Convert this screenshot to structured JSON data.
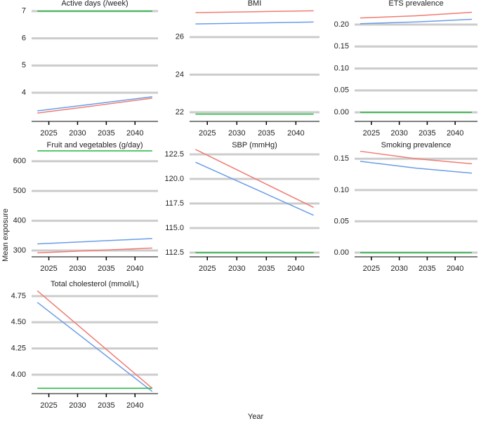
{
  "ylabel": "Mean exposure",
  "xlabel": "Year",
  "chart_data": [
    {
      "type": "line",
      "title": "Active days (/week)",
      "x": [
        2023,
        2033,
        2043
      ],
      "xlim": [
        2022,
        2044
      ],
      "xticks": [
        2025,
        2030,
        2035,
        2040
      ],
      "ylim": [
        2.97,
        7.15
      ],
      "yticks": [
        4,
        5,
        6,
        7
      ],
      "grid": true,
      "series": [
        {
          "color": "#f07b72",
          "values": [
            3.25,
            3.52,
            3.8
          ]
        },
        {
          "color": "#6a9de8",
          "values": [
            3.33,
            3.59,
            3.85
          ]
        },
        {
          "color": "#1fb53d",
          "values": [
            7,
            7,
            7
          ]
        }
      ]
    },
    {
      "type": "line",
      "title": "BMI",
      "x": [
        2023,
        2033,
        2043
      ],
      "xlim": [
        2022,
        2044
      ],
      "xticks": [
        2025,
        2030,
        2035,
        2040
      ],
      "ylim": [
        21.55,
        27.6
      ],
      "yticks": [
        22,
        24,
        26
      ],
      "grid": true,
      "series": [
        {
          "color": "#f07b72",
          "values": [
            27.3,
            27.35,
            27.4
          ]
        },
        {
          "color": "#6a9de8",
          "values": [
            26.7,
            26.75,
            26.8
          ]
        },
        {
          "color": "#1fb53d",
          "values": [
            21.9,
            21.9,
            21.9
          ]
        }
      ]
    },
    {
      "type": "line",
      "title": "ETS prevalence",
      "x": [
        2023,
        2033,
        2043
      ],
      "xlim": [
        2022,
        2044
      ],
      "xticks": [
        2025,
        2030,
        2035,
        2040
      ],
      "ylim": [
        -0.019,
        0.24
      ],
      "yticks": [
        {
          "value": 0,
          "label": "0.00"
        },
        {
          "value": 0.05,
          "label": "0.05"
        },
        {
          "value": 0.1,
          "label": "0.10"
        },
        {
          "value": 0.15,
          "label": "0.15"
        },
        {
          "value": 0.2,
          "label": "0.20"
        }
      ],
      "grid": true,
      "series": [
        {
          "color": "#f07b72",
          "values": [
            0.215,
            0.22,
            0.228
          ]
        },
        {
          "color": "#6a9de8",
          "values": [
            0.202,
            0.206,
            0.212
          ]
        },
        {
          "color": "#1fb53d",
          "values": [
            0,
            0,
            0
          ]
        }
      ]
    },
    {
      "type": "line",
      "title": "Fruit and vegetables (g/day)",
      "x": [
        2023,
        2033,
        2043
      ],
      "xlim": [
        2022,
        2044
      ],
      "xticks": [
        2025,
        2030,
        2035,
        2040
      ],
      "ylim": [
        281,
        642
      ],
      "yticks": [
        300,
        400,
        500,
        600
      ],
      "grid": true,
      "series": [
        {
          "color": "#f07b72",
          "values": [
            292,
            300,
            308
          ]
        },
        {
          "color": "#6a9de8",
          "values": [
            322,
            331,
            340
          ]
        },
        {
          "color": "#1fb53d",
          "values": [
            635,
            635,
            635
          ]
        }
      ]
    },
    {
      "type": "line",
      "title": "SBP (mmHg)",
      "x": [
        2023,
        2033,
        2043
      ],
      "xlim": [
        2022,
        2044
      ],
      "xticks": [
        2025,
        2030,
        2035,
        2040
      ],
      "ylim": [
        112.14,
        123.07
      ],
      "yticks": [
        {
          "value": 112.5,
          "label": "112.5"
        },
        {
          "value": 115,
          "label": "115.0"
        },
        {
          "value": 117.5,
          "label": "117.5"
        },
        {
          "value": 120,
          "label": "120.0"
        },
        {
          "value": 122.5,
          "label": "122.5"
        }
      ],
      "grid": true,
      "series": [
        {
          "color": "#f07b72",
          "values": [
            123.0,
            120.05,
            117.1
          ]
        },
        {
          "color": "#6a9de8",
          "values": [
            121.7,
            119.0,
            116.3
          ]
        },
        {
          "color": "#1fb53d",
          "values": [
            112.5,
            112.5,
            112.5
          ]
        }
      ]
    },
    {
      "type": "line",
      "title": "Smoking prevalence",
      "x": [
        2023,
        2033,
        2043
      ],
      "xlim": [
        2022,
        2044
      ],
      "xticks": [
        2025,
        2030,
        2035,
        2040
      ],
      "ylim": [
        -0.0056,
        0.166
      ],
      "yticks": [
        {
          "value": 0,
          "label": "0.00"
        },
        {
          "value": 0.05,
          "label": "0.05"
        },
        {
          "value": 0.1,
          "label": "0.10"
        },
        {
          "value": 0.15,
          "label": "0.15"
        }
      ],
      "grid": true,
      "series": [
        {
          "color": "#f07b72",
          "values": [
            0.162,
            0.15,
            0.142
          ]
        },
        {
          "color": "#6a9de8",
          "values": [
            0.146,
            0.135,
            0.127
          ]
        },
        {
          "color": "#1fb53d",
          "values": [
            0,
            0,
            0
          ]
        }
      ]
    },
    {
      "type": "line",
      "title": "Total cholesterol (mmol/L)",
      "x": [
        2023,
        2033,
        2043
      ],
      "xlim": [
        2022,
        2044
      ],
      "xticks": [
        2025,
        2030,
        2035,
        2040
      ],
      "ylim": [
        3.826,
        4.83
      ],
      "yticks": [
        {
          "value": 4,
          "label": "4.00"
        },
        {
          "value": 4.25,
          "label": "4.25"
        },
        {
          "value": 4.5,
          "label": "4.50"
        },
        {
          "value": 4.75,
          "label": "4.75"
        }
      ],
      "grid": true,
      "series": [
        {
          "color": "#f07b72",
          "values": [
            4.8,
            4.335,
            3.87
          ]
        },
        {
          "color": "#6a9de8",
          "values": [
            4.69,
            4.265,
            3.84
          ]
        },
        {
          "color": "#1fb53d",
          "values": [
            3.87,
            3.87,
            3.87
          ]
        }
      ]
    }
  ]
}
